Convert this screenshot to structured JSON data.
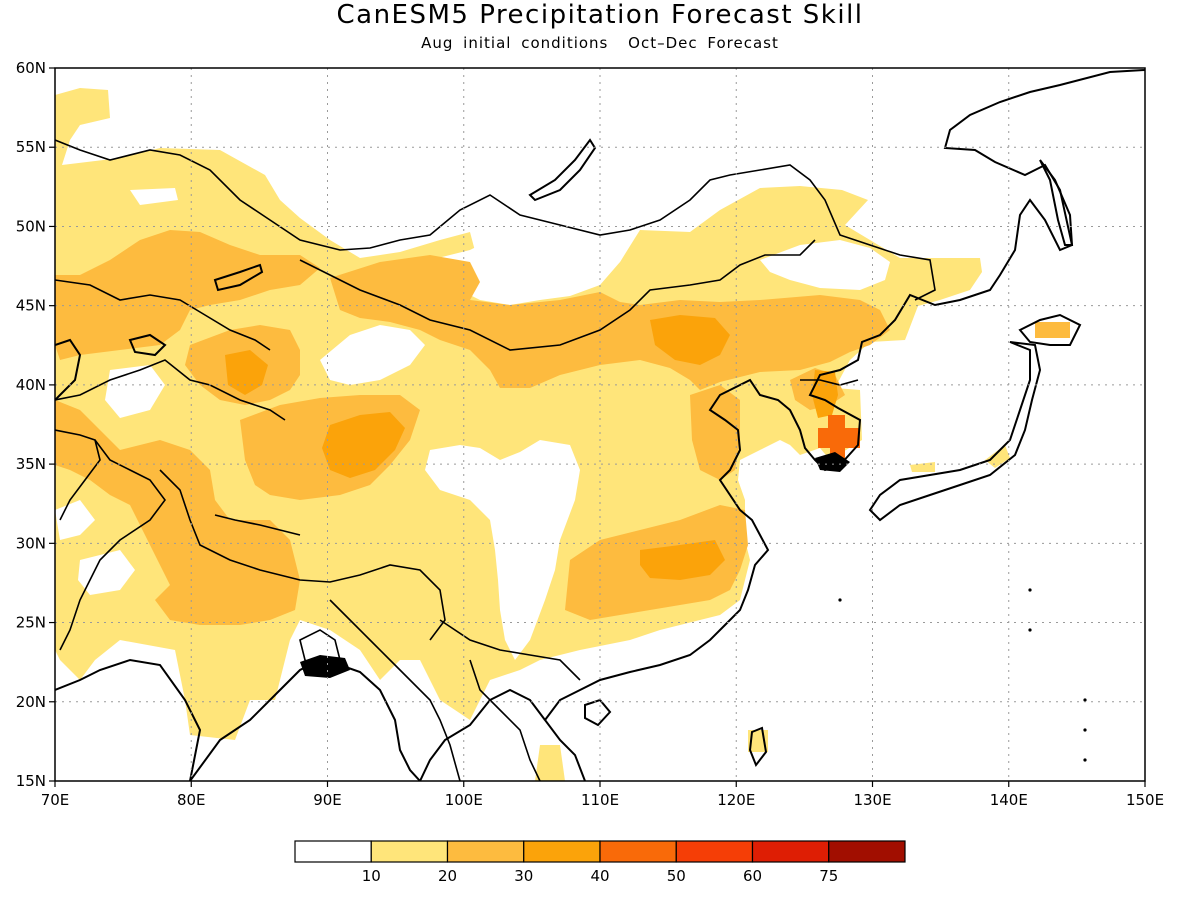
{
  "title": "CanESM5 Precipitation Forecast Skill",
  "subtitle_left": "Aug initial conditions",
  "subtitle_right": "Oct–Dec Forecast",
  "map": {
    "lon_range": [
      70,
      150
    ],
    "lat_range": [
      15,
      60
    ],
    "lon_ticks": [
      "70E",
      "80E",
      "90E",
      "100E",
      "110E",
      "120E",
      "130E",
      "140E",
      "150E"
    ],
    "lat_ticks": [
      "15N",
      "20N",
      "25N",
      "30N",
      "35N",
      "40N",
      "45N",
      "50N",
      "55N",
      "60N"
    ],
    "gridlines": "dotted"
  },
  "colorbar": {
    "levels": [
      "10",
      "20",
      "30",
      "40",
      "50",
      "60",
      "75"
    ],
    "colors": [
      "#ffffff",
      "#ffe57a",
      "#fdbb3f",
      "#fba30a",
      "#f96a09",
      "#f53e06",
      "#de1e04",
      "#a10e00"
    ]
  }
}
